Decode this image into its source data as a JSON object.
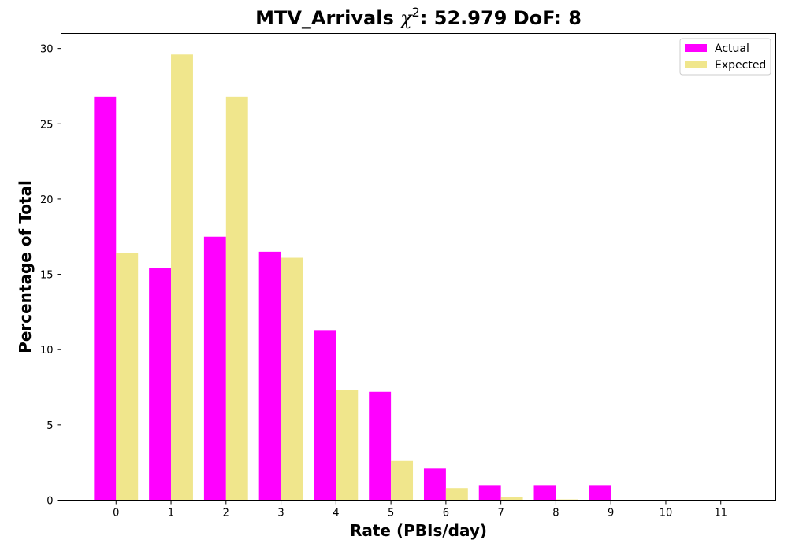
{
  "chart_data": {
    "type": "bar",
    "title_prefix": "MTV_Arrivals ",
    "title_chi": "χ",
    "title_sup": "2",
    "title_suffix": ": 52.979 DoF: 8",
    "xlabel": "Rate (PBIs/day)",
    "ylabel": "Percentage of Total",
    "categories": [
      "0",
      "1",
      "2",
      "3",
      "4",
      "5",
      "6",
      "7",
      "8",
      "9",
      "10",
      "11"
    ],
    "xlim": [
      -1,
      12
    ],
    "ylim": [
      0,
      31
    ],
    "yticks": [
      0,
      5,
      10,
      15,
      20,
      25,
      30
    ],
    "grid": false,
    "legend_position": "top-right",
    "series": [
      {
        "name": "Actual",
        "color": "#ff00ff",
        "values": [
          26.8,
          15.4,
          17.5,
          16.5,
          11.3,
          7.2,
          2.1,
          1.0,
          1.0,
          1.0,
          0,
          0
        ]
      },
      {
        "name": "Expected",
        "color": "#f0e68c",
        "values": [
          16.4,
          29.6,
          26.8,
          16.1,
          7.3,
          2.6,
          0.8,
          0.2,
          0.05,
          0,
          0,
          0
        ]
      }
    ]
  }
}
